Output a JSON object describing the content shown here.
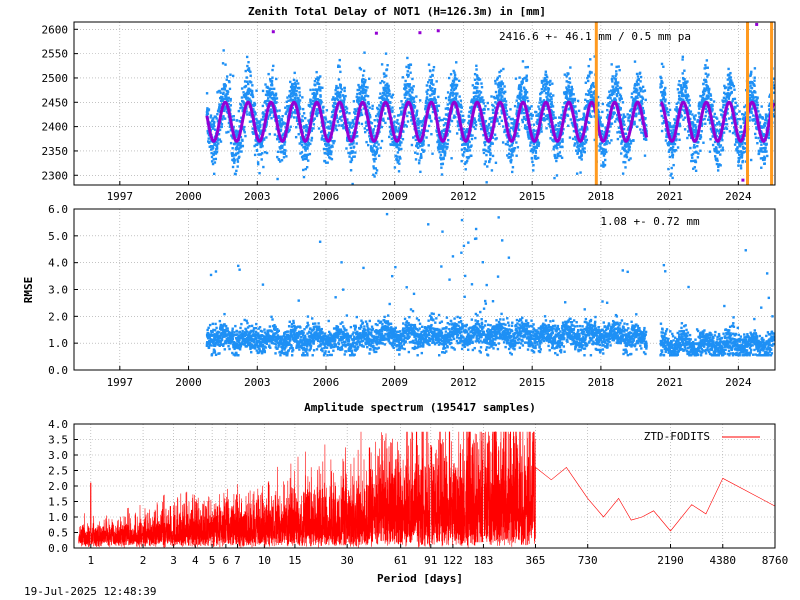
{
  "footer": {
    "timestamp": "19-Jul-2025 12:48:39"
  },
  "chart_data": [
    {
      "type": "scatter",
      "title": "Zenith Total Delay of NOT1 (H=126.3m) in [mm]",
      "annotation": "2416.6 +-  46.1 mm /  0.5 mm pa",
      "xlim": [
        1995.0,
        2025.6
      ],
      "ylim": [
        2280,
        2615
      ],
      "x_ticks": [
        1997,
        2000,
        2003,
        2006,
        2009,
        2012,
        2015,
        2018,
        2021,
        2024
      ],
      "y_ticks": [
        2300,
        2350,
        2400,
        2450,
        2500,
        2550,
        2600
      ],
      "grid": true,
      "series": [
        {
          "role": "observations",
          "color": "#1e90f5",
          "x_start": 2000.8,
          "x_end": 2025.55,
          "gap": [
            2020.0,
            2020.6
          ],
          "mean": 2416.6,
          "amplitude_seasonal": 46.1,
          "spread": 85
        },
        {
          "role": "seasonal-model",
          "color": "#9400d3",
          "x_start": 2000.8,
          "x_end": 2025.55,
          "gap": [
            2020.0,
            2020.6
          ],
          "mean": 2410,
          "amplitude": 40
        }
      ],
      "vertical_markers": {
        "color": "#ff9a1f",
        "x": [
          2017.8,
          2024.4,
          2025.45
        ]
      }
    },
    {
      "type": "scatter",
      "ylabel": "RMSE",
      "annotation": "1.08 +-  0.72 mm",
      "xlim": [
        1995.0,
        2025.6
      ],
      "ylim": [
        0,
        6
      ],
      "x_ticks": [
        1997,
        2000,
        2003,
        2006,
        2009,
        2012,
        2015,
        2018,
        2021,
        2024
      ],
      "y_ticks": [
        0.0,
        1.0,
        2.0,
        3.0,
        4.0,
        5.0,
        6.0
      ],
      "grid": true,
      "series": [
        {
          "role": "rmse",
          "color": "#1e90f5",
          "x_start": 2000.8,
          "x_end": 2025.55,
          "gap": [
            2020.0,
            2020.6
          ],
          "mean": 1.08,
          "std": 0.72
        }
      ]
    },
    {
      "type": "line",
      "title": "Amplitude spectrum (195417 samples)",
      "xlabel": "Period [days]",
      "xscale": "log",
      "xlim": [
        0.8,
        8760
      ],
      "ylim": [
        0,
        4.0
      ],
      "x_ticks": [
        1,
        2,
        3,
        4,
        5,
        6,
        7,
        10,
        15,
        30,
        61,
        91,
        122,
        183,
        365,
        730,
        2190,
        4380,
        8760
      ],
      "y_ticks": [
        0.0,
        0.5,
        1.0,
        1.5,
        2.0,
        2.5,
        3.0,
        3.5,
        4.0
      ],
      "grid": true,
      "legend": {
        "position": "top-right"
      },
      "series": [
        {
          "name": "ZTD-FODITS",
          "color": "#ff0000",
          "peaks": [
            {
              "x": 1.0,
              "y": 2.1
            },
            {
              "x": 183,
              "y": 3.7
            },
            {
              "x": 91,
              "y": 3.3
            }
          ],
          "long_period": [
            {
              "x": 365,
              "y": 2.6
            },
            {
              "x": 450,
              "y": 2.2
            },
            {
              "x": 550,
              "y": 2.6
            },
            {
              "x": 730,
              "y": 1.6
            },
            {
              "x": 900,
              "y": 1.0
            },
            {
              "x": 1100,
              "y": 1.6
            },
            {
              "x": 1300,
              "y": 0.9
            },
            {
              "x": 1500,
              "y": 1.0
            },
            {
              "x": 1750,
              "y": 1.2
            },
            {
              "x": 2190,
              "y": 0.55
            },
            {
              "x": 2900,
              "y": 1.4
            },
            {
              "x": 3500,
              "y": 1.1
            },
            {
              "x": 4380,
              "y": 2.25
            },
            {
              "x": 8760,
              "y": 1.35
            }
          ]
        }
      ]
    }
  ]
}
